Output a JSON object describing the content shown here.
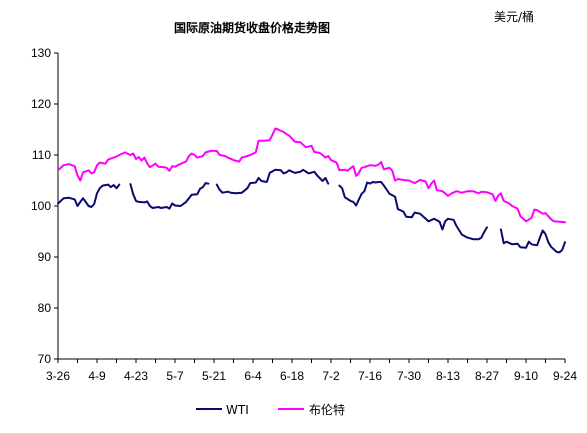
{
  "chart_data": {
    "type": "line",
    "title": "国际原油期货收盘价格走势图",
    "unit_label": "美元/桶",
    "ylim": [
      70,
      130
    ],
    "y_ticks": [
      70,
      80,
      90,
      100,
      110,
      120,
      130
    ],
    "x_tick_labels": [
      "3-26",
      "4-9",
      "4-23",
      "5-7",
      "5-21",
      "6-4",
      "6-18",
      "7-2",
      "7-16",
      "7-30",
      "8-13",
      "8-27",
      "9-10",
      "9-24"
    ],
    "x_tick_days": [
      0,
      14,
      28,
      42,
      56,
      70,
      84,
      98,
      112,
      126,
      140,
      154,
      168,
      182
    ],
    "grid": false,
    "legend_position": "bottom",
    "series": [
      {
        "name": "WTI",
        "color": "#0a0a6e",
        "segments": [
          [
            [
              0,
              100.5
            ],
            [
              2,
              101.5
            ],
            [
              4,
              101.6
            ],
            [
              6,
              101.3
            ],
            [
              7,
              100.0
            ],
            [
              8,
              100.8
            ],
            [
              9,
              101.5
            ],
            [
              11,
              100.0
            ],
            [
              12,
              99.8
            ],
            [
              13,
              100.4
            ],
            [
              14,
              102.5
            ],
            [
              15,
              103.5
            ],
            [
              16,
              104.0
            ],
            [
              18,
              104.2
            ],
            [
              19,
              103.7
            ],
            [
              20,
              104.1
            ],
            [
              21,
              103.5
            ],
            [
              22,
              104.2
            ]
          ],
          [
            [
              26,
              104.3
            ],
            [
              27,
              102.3
            ],
            [
              28,
              101.0
            ],
            [
              29,
              100.8
            ],
            [
              31,
              100.7
            ],
            [
              32,
              100.9
            ],
            [
              33,
              100.0
            ],
            [
              34,
              99.6
            ],
            [
              36,
              99.8
            ],
            [
              37,
              99.6
            ],
            [
              39,
              99.8
            ],
            [
              40,
              99.5
            ],
            [
              41,
              100.5
            ],
            [
              42,
              100.1
            ],
            [
              44,
              100.0
            ],
            [
              46,
              100.8
            ],
            [
              47,
              101.5
            ],
            [
              48,
              102.2
            ],
            [
              50,
              102.3
            ],
            [
              51,
              103.4
            ],
            [
              52,
              103.7
            ],
            [
              53,
              104.5
            ],
            [
              54,
              104.4
            ]
          ],
          [
            [
              57,
              104.2
            ],
            [
              58,
              103.2
            ],
            [
              59,
              102.6
            ],
            [
              61,
              102.8
            ],
            [
              62,
              102.6
            ],
            [
              64,
              102.5
            ],
            [
              66,
              102.6
            ],
            [
              68,
              103.5
            ],
            [
              69,
              104.5
            ],
            [
              71,
              104.6
            ],
            [
              72,
              105.5
            ],
            [
              73,
              104.9
            ],
            [
              75,
              104.7
            ],
            [
              76,
              106.5
            ],
            [
              78,
              107.1
            ],
            [
              80,
              107.0
            ],
            [
              81,
              106.4
            ],
            [
              82,
              106.6
            ],
            [
              83,
              107.0
            ],
            [
              85,
              106.5
            ],
            [
              87,
              106.7
            ],
            [
              88,
              107.1
            ],
            [
              90,
              106.4
            ],
            [
              92,
              106.7
            ],
            [
              93,
              106.0
            ],
            [
              95,
              104.9
            ],
            [
              96,
              105.5
            ],
            [
              97,
              104.4
            ]
          ],
          [
            [
              101,
              104.0
            ],
            [
              102,
              103.5
            ],
            [
              103,
              101.7
            ],
            [
              105,
              101.0
            ],
            [
              106,
              100.8
            ],
            [
              107,
              100.1
            ],
            [
              108,
              101.3
            ],
            [
              109,
              102.4
            ],
            [
              110,
              102.9
            ],
            [
              111,
              104.6
            ],
            [
              112,
              104.4
            ],
            [
              113,
              104.7
            ],
            [
              114,
              104.6
            ],
            [
              115,
              104.7
            ],
            [
              116,
              104.7
            ],
            [
              117,
              104.0
            ],
            [
              118,
              103.2
            ],
            [
              119,
              102.4
            ],
            [
              121,
              101.8
            ],
            [
              122,
              99.4
            ],
            [
              124,
              98.9
            ],
            [
              125,
              97.9
            ],
            [
              127,
              97.8
            ],
            [
              128,
              98.7
            ],
            [
              130,
              98.5
            ],
            [
              132,
              97.5
            ],
            [
              133,
              97.0
            ],
            [
              135,
              97.5
            ],
            [
              137,
              96.9
            ],
            [
              138,
              95.4
            ],
            [
              139,
              97.0
            ],
            [
              140,
              97.5
            ],
            [
              142,
              97.3
            ],
            [
              143,
              96.1
            ],
            [
              145,
              94.4
            ],
            [
              147,
              93.8
            ],
            [
              149,
              93.5
            ],
            [
              151,
              93.5
            ],
            [
              152,
              93.8
            ],
            [
              153,
              94.9
            ],
            [
              154,
              95.8
            ]
          ],
          [
            [
              159,
              95.4
            ],
            [
              160,
              92.7
            ],
            [
              161,
              93.0
            ],
            [
              163,
              92.5
            ],
            [
              165,
              92.6
            ],
            [
              166,
              91.9
            ],
            [
              168,
              91.8
            ],
            [
              169,
              93.0
            ],
            [
              170,
              92.5
            ],
            [
              172,
              92.3
            ],
            [
              173,
              93.8
            ],
            [
              174,
              95.2
            ],
            [
              175,
              94.5
            ],
            [
              176,
              92.9
            ],
            [
              177,
              92.0
            ],
            [
              179,
              91.0
            ],
            [
              180,
              90.9
            ],
            [
              181,
              91.4
            ],
            [
              182,
              92.9
            ]
          ]
        ]
      },
      {
        "name": "布伦特",
        "color": "#ff00ff",
        "segments": [
          [
            [
              0,
              107.0
            ],
            [
              2,
              108.0
            ],
            [
              4,
              108.2
            ],
            [
              6,
              107.8
            ],
            [
              7,
              106.0
            ],
            [
              8,
              105.0
            ],
            [
              9,
              106.6
            ],
            [
              11,
              107.0
            ],
            [
              12,
              106.4
            ],
            [
              13,
              106.6
            ],
            [
              14,
              108.0
            ],
            [
              15,
              108.5
            ],
            [
              17,
              108.3
            ],
            [
              18,
              109.1
            ],
            [
              20,
              109.5
            ],
            [
              21,
              109.7
            ],
            [
              22,
              110.0
            ],
            [
              24,
              110.5
            ],
            [
              26,
              110.0
            ],
            [
              27,
              110.3
            ],
            [
              28,
              109.2
            ],
            [
              29,
              109.6
            ],
            [
              30,
              108.9
            ],
            [
              31,
              109.5
            ],
            [
              32,
              108.4
            ],
            [
              33,
              107.6
            ],
            [
              35,
              108.3
            ],
            [
              36,
              107.7
            ],
            [
              38,
              107.6
            ],
            [
              39,
              107.5
            ],
            [
              40,
              106.9
            ],
            [
              41,
              107.8
            ],
            [
              42,
              107.7
            ],
            [
              43,
              108.0
            ],
            [
              45,
              108.5
            ],
            [
              46,
              108.7
            ],
            [
              47,
              109.8
            ],
            [
              48,
              110.3
            ],
            [
              49,
              110.0
            ],
            [
              50,
              109.5
            ],
            [
              52,
              109.8
            ],
            [
              53,
              110.5
            ],
            [
              55,
              110.8
            ],
            [
              57,
              110.8
            ],
            [
              58,
              110.0
            ],
            [
              60,
              109.8
            ],
            [
              61,
              109.5
            ],
            [
              63,
              109.0
            ],
            [
              65,
              108.7
            ],
            [
              66,
              109.5
            ],
            [
              68,
              109.8
            ],
            [
              69,
              110.0
            ],
            [
              71,
              110.5
            ],
            [
              72,
              112.8
            ],
            [
              74,
              112.8
            ],
            [
              76,
              112.9
            ],
            [
              77,
              114.0
            ],
            [
              78,
              115.2
            ],
            [
              79,
              115.0
            ],
            [
              81,
              114.5
            ],
            [
              82,
              114.1
            ],
            [
              83,
              113.8
            ],
            [
              85,
              112.6
            ],
            [
              87,
              112.5
            ],
            [
              88,
              112.0
            ],
            [
              89,
              111.5
            ],
            [
              91,
              111.8
            ],
            [
              92,
              110.6
            ],
            [
              94,
              110.4
            ],
            [
              95,
              110.0
            ],
            [
              96,
              109.5
            ],
            [
              97,
              109.8
            ],
            [
              98,
              109.0
            ],
            [
              100,
              108.5
            ],
            [
              101,
              107.0
            ],
            [
              103,
              107.1
            ],
            [
              104,
              106.9
            ],
            [
              105,
              107.4
            ],
            [
              106,
              107.8
            ],
            [
              107,
              105.9
            ],
            [
              108,
              106.5
            ],
            [
              109,
              107.5
            ],
            [
              110,
              107.6
            ],
            [
              112,
              108.0
            ],
            [
              114,
              107.9
            ],
            [
              115,
              108.1
            ],
            [
              116,
              108.6
            ],
            [
              117,
              107.2
            ],
            [
              119,
              107.5
            ],
            [
              120,
              106.9
            ],
            [
              121,
              105.0
            ],
            [
              122,
              105.3
            ],
            [
              124,
              105.1
            ],
            [
              126,
              105.0
            ],
            [
              128,
              104.5
            ],
            [
              130,
              105.1
            ],
            [
              132,
              104.8
            ],
            [
              133,
              103.5
            ],
            [
              134,
              104.4
            ],
            [
              135,
              105.0
            ],
            [
              136,
              103.1
            ],
            [
              138,
              102.9
            ],
            [
              140,
              102.0
            ],
            [
              141,
              102.4
            ],
            [
              143,
              102.9
            ],
            [
              145,
              102.6
            ],
            [
              147,
              102.9
            ],
            [
              149,
              102.9
            ],
            [
              151,
              102.5
            ],
            [
              152,
              102.8
            ],
            [
              154,
              102.7
            ],
            [
              156,
              102.3
            ],
            [
              157,
              101.0
            ],
            [
              158,
              102.0
            ],
            [
              159,
              102.5
            ],
            [
              160,
              101.0
            ],
            [
              162,
              100.5
            ],
            [
              163,
              100.0
            ],
            [
              165,
              99.5
            ],
            [
              166,
              98.0
            ],
            [
              168,
              97.0
            ],
            [
              170,
              97.7
            ],
            [
              171,
              99.3
            ],
            [
              172,
              99.2
            ],
            [
              174,
              98.5
            ],
            [
              175,
              98.6
            ],
            [
              176,
              98.0
            ],
            [
              177,
              97.4
            ],
            [
              178,
              97.0
            ],
            [
              180,
              96.9
            ],
            [
              182,
              96.8
            ]
          ]
        ]
      }
    ]
  }
}
